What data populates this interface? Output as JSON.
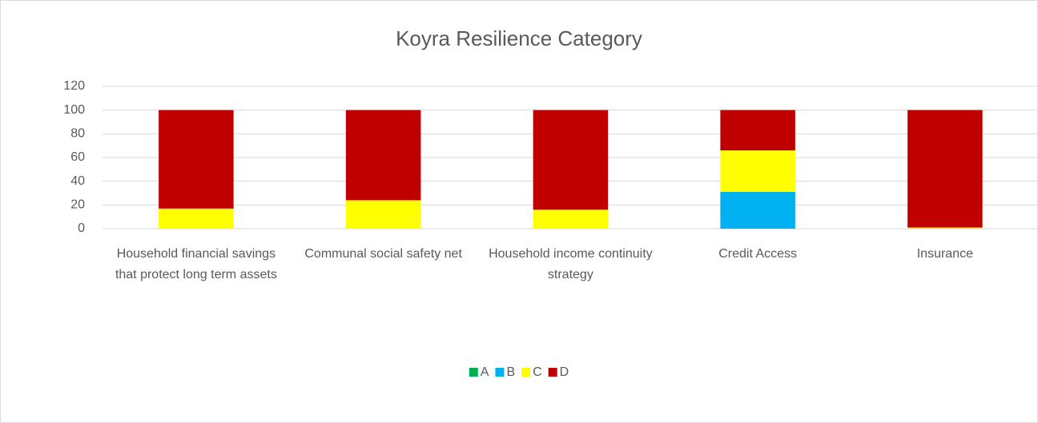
{
  "chart_data": {
    "type": "stacked_bar",
    "title": "Koyra Resilience Category",
    "categories": [
      "Household financial savings that protect long term assets",
      "Communal social safety net",
      "Household income continuity strategy",
      "Credit Access",
      "Insurance"
    ],
    "series": [
      {
        "name": "A",
        "color": "#00b050",
        "values": [
          0,
          0,
          0,
          0,
          0
        ]
      },
      {
        "name": "B",
        "color": "#00b0f0",
        "values": [
          0,
          0,
          0,
          31,
          0
        ]
      },
      {
        "name": "C",
        "color": "#ffff00",
        "values": [
          17,
          24,
          16,
          35,
          1
        ]
      },
      {
        "name": "D",
        "color": "#c00000",
        "values": [
          83,
          76,
          84,
          34,
          99
        ]
      }
    ],
    "ylim": [
      0,
      120
    ],
    "yticks": [
      0,
      20,
      40,
      60,
      80,
      100,
      120
    ],
    "grid": true,
    "legend": "bottom"
  }
}
